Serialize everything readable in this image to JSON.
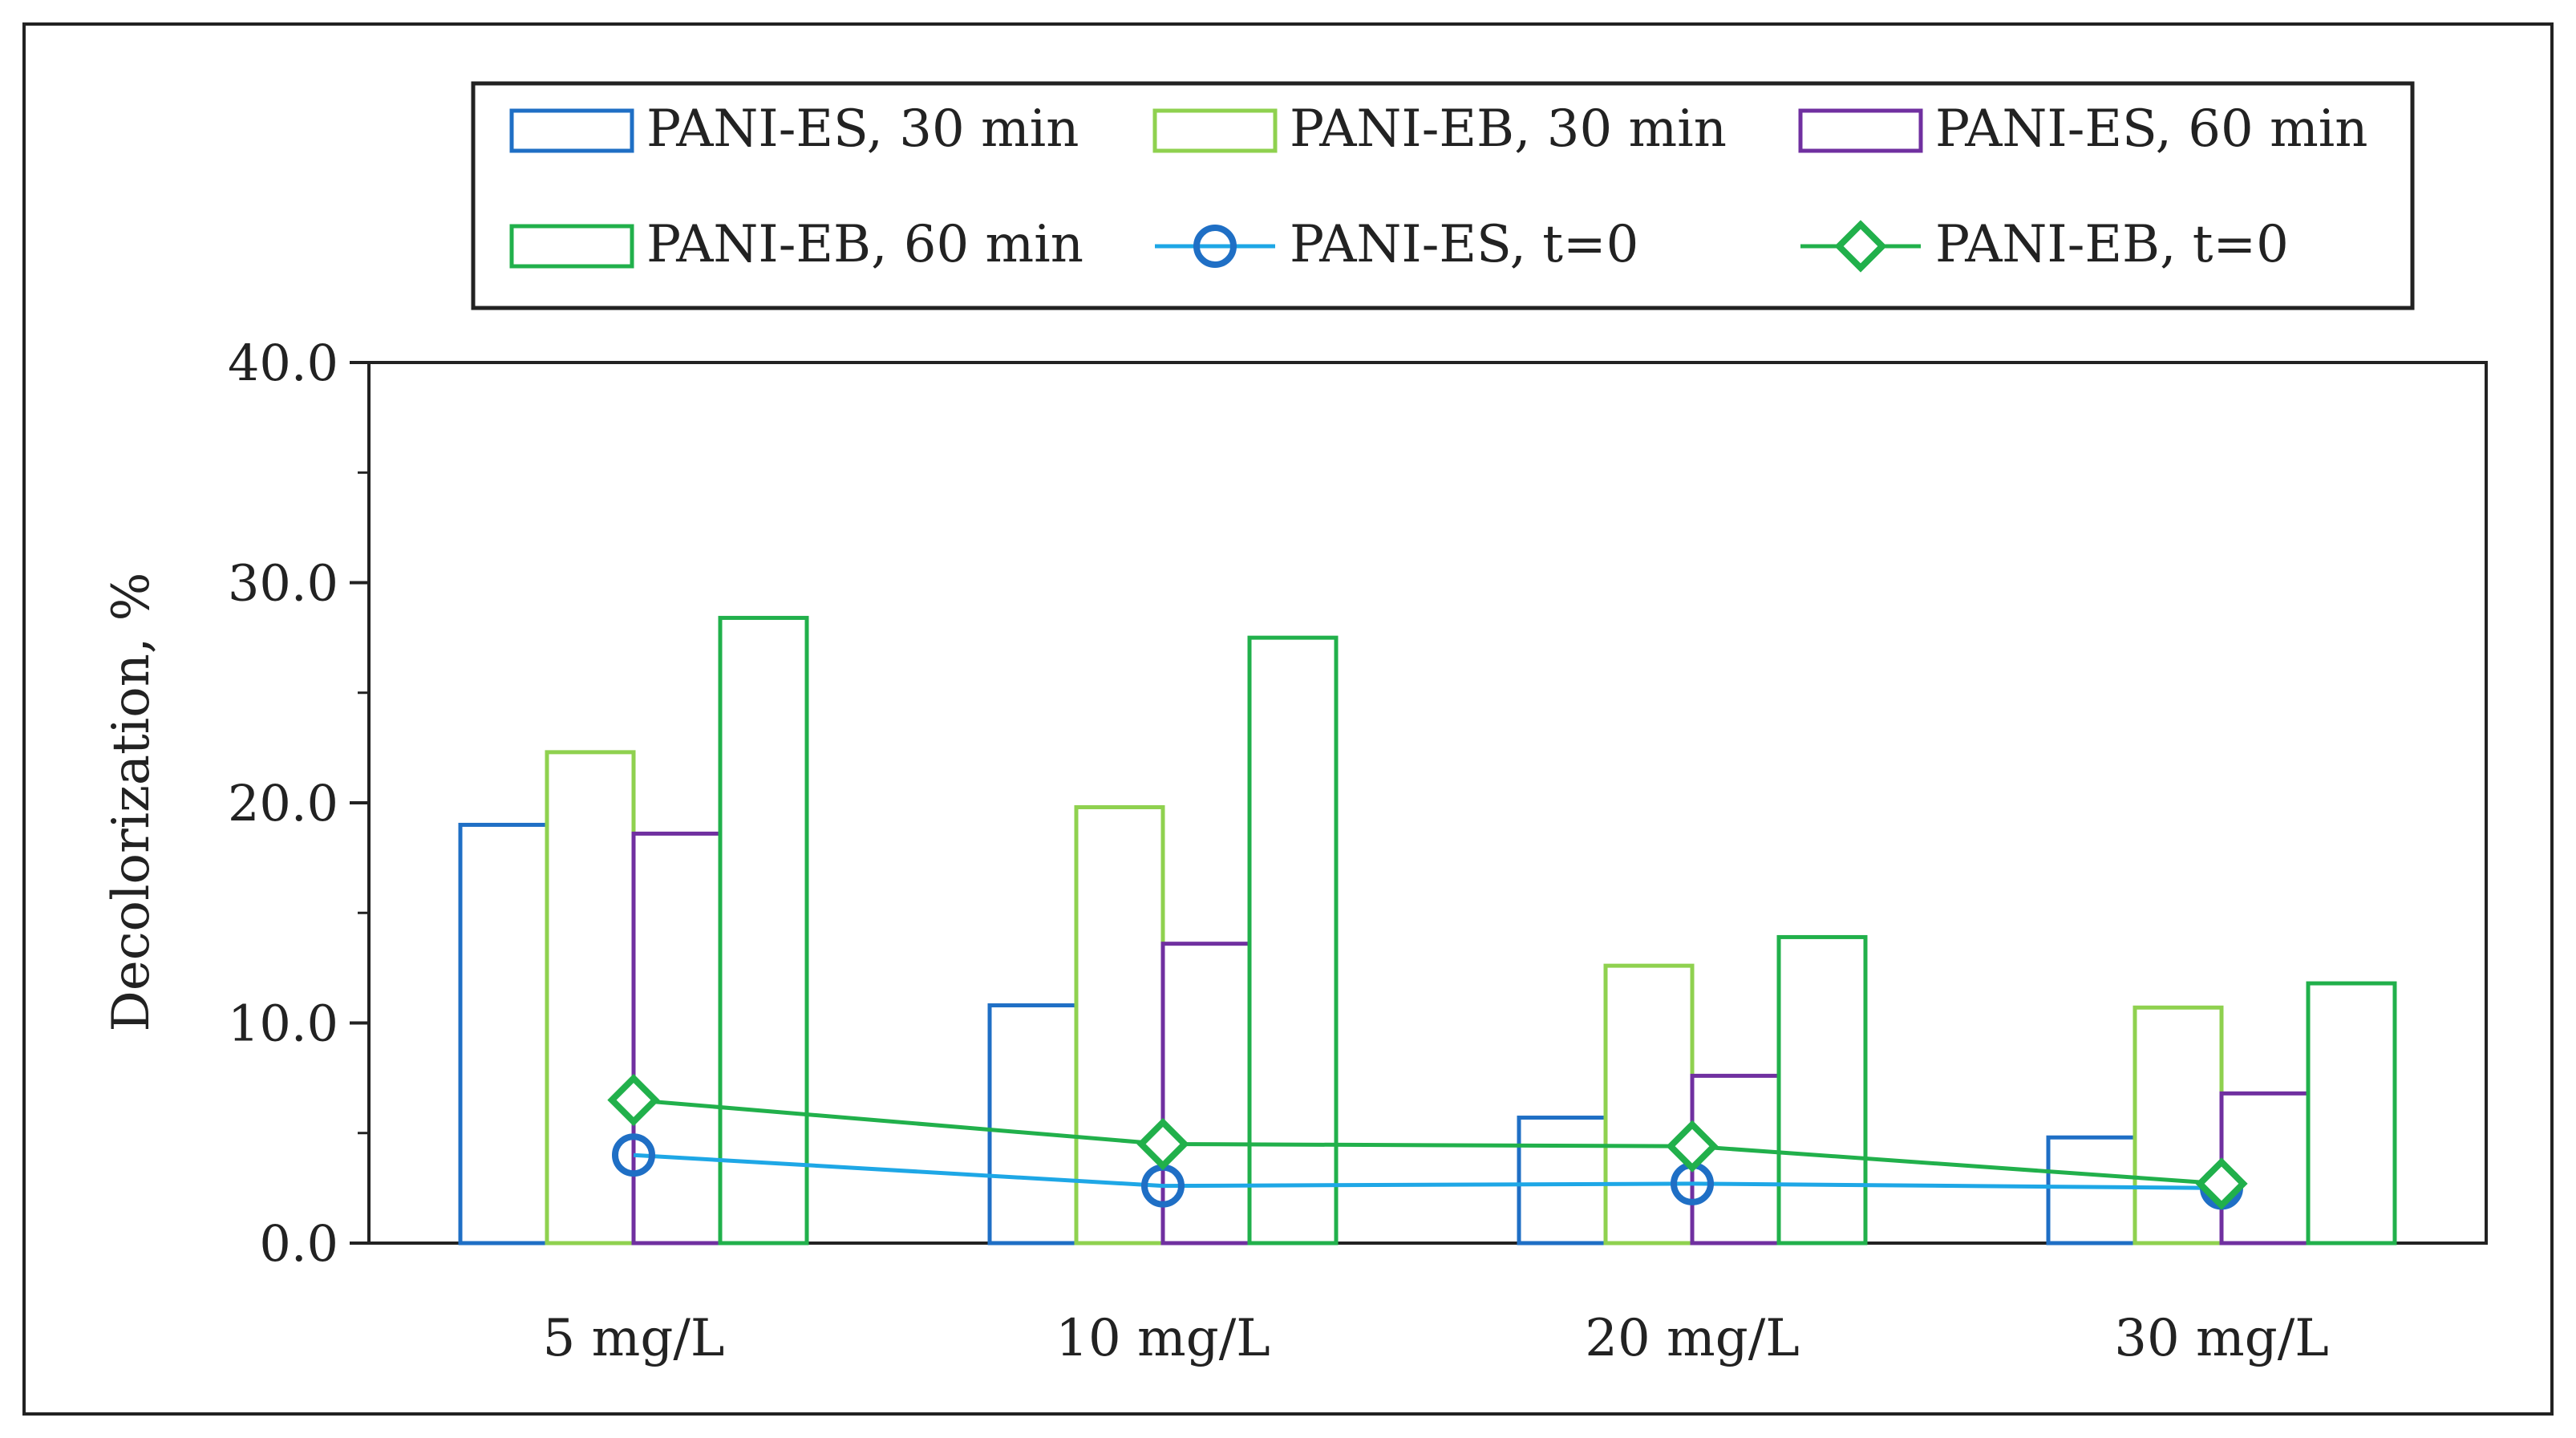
{
  "chart_data": {
    "type": "bar",
    "title": "",
    "xlabel": "",
    "ylabel": "Decolorization, %",
    "ylim": [
      0,
      40
    ],
    "yticks": [
      "0.0",
      "10.0",
      "20.0",
      "30.0",
      "40.0"
    ],
    "categories": [
      "5 mg/L",
      "10 mg/L",
      "20 mg/L",
      "30 mg/L"
    ],
    "series": [
      {
        "name": "PANI-ES, 30 min",
        "kind": "bar",
        "color": "#1f6fc5",
        "values": [
          19.0,
          10.8,
          5.7,
          4.8
        ]
      },
      {
        "name": "PANI-EB, 30 min",
        "kind": "bar",
        "color": "#8fd14f",
        "values": [
          22.3,
          19.8,
          12.6,
          10.7
        ]
      },
      {
        "name": "PANI-ES, 60 min",
        "kind": "bar",
        "color": "#7030a0",
        "values": [
          18.6,
          13.6,
          7.6,
          6.8
        ]
      },
      {
        "name": "PANI-EB, 60 min",
        "kind": "bar",
        "color": "#21b04b",
        "values": [
          28.4,
          27.5,
          13.9,
          11.8
        ]
      },
      {
        "name": "PANI-ES, t=0",
        "kind": "line",
        "marker": "circle",
        "color": "#1ea7e6",
        "marker_color": "#1f6fc5",
        "values": [
          4.0,
          2.6,
          2.7,
          2.5
        ]
      },
      {
        "name": "PANI-EB, t=0",
        "kind": "line",
        "marker": "diamond",
        "color": "#21b04b",
        "marker_color": "#21b04b",
        "values": [
          6.5,
          4.5,
          4.4,
          2.7
        ]
      }
    ],
    "legend_position": "top"
  }
}
